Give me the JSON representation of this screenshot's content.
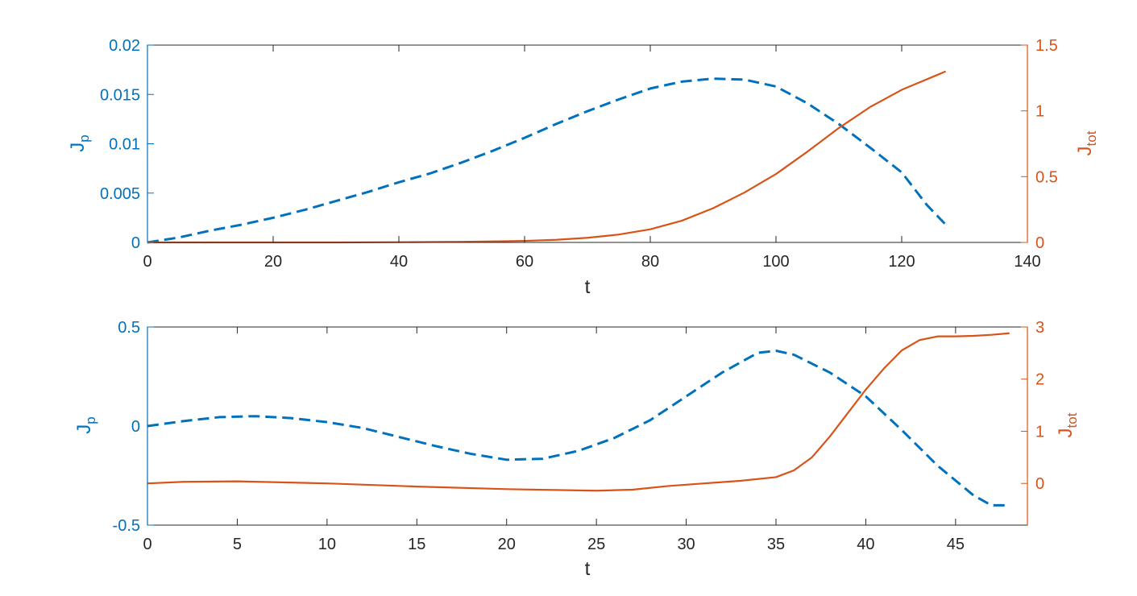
{
  "colors": {
    "left_axis": "#0072BD",
    "right_axis": "#D95319",
    "axes": "#262626",
    "background": "#ffffff"
  },
  "chart_data": [
    {
      "type": "line",
      "title": "",
      "xlabel": "t",
      "ylabel_left": {
        "main": "J",
        "sub": "p"
      },
      "ylabel_right": {
        "main": "J",
        "sub": "tot"
      },
      "xlim": [
        0,
        140
      ],
      "ylim_left": [
        0,
        0.02
      ],
      "ylim_right": [
        0,
        1.5
      ],
      "x_ticks": [
        "0",
        "20",
        "40",
        "60",
        "80",
        "100",
        "120",
        "140"
      ],
      "y_ticks_left": [
        "0",
        "0.005",
        "0.01",
        "0.015",
        "0.02"
      ],
      "y_ticks_right": [
        "0",
        "0.5",
        "1",
        "1.5"
      ],
      "grid": false,
      "series": [
        {
          "axis": "left",
          "style": "dashed",
          "color": "#0072BD",
          "x": [
            0,
            5,
            10,
            15,
            20,
            25,
            30,
            35,
            40,
            45,
            50,
            55,
            60,
            65,
            70,
            75,
            80,
            85,
            90,
            95,
            100,
            105,
            110,
            115,
            120,
            124,
            127
          ],
          "y": [
            0.0,
            0.0005,
            0.0012,
            0.0018,
            0.0025,
            0.0033,
            0.0042,
            0.0051,
            0.0061,
            0.007,
            0.0081,
            0.0093,
            0.0106,
            0.012,
            0.0133,
            0.0145,
            0.0156,
            0.0163,
            0.0166,
            0.0165,
            0.0158,
            0.0141,
            0.012,
            0.0096,
            0.0071,
            0.0038,
            0.0018
          ]
        },
        {
          "axis": "right",
          "style": "solid",
          "color": "#D95319",
          "x": [
            0,
            10,
            20,
            30,
            40,
            50,
            55,
            60,
            65,
            70,
            75,
            80,
            85,
            90,
            95,
            100,
            105,
            110,
            115,
            120,
            125,
            127
          ],
          "y": [
            0,
            0,
            0,
            0,
            0.002,
            0.005,
            0.008,
            0.012,
            0.02,
            0.035,
            0.06,
            0.1,
            0.165,
            0.26,
            0.38,
            0.52,
            0.69,
            0.87,
            1.03,
            1.16,
            1.26,
            1.3
          ]
        }
      ]
    },
    {
      "type": "line",
      "title": "",
      "xlabel": "t",
      "ylabel_left": {
        "main": "J",
        "sub": "p"
      },
      "ylabel_right": {
        "main": "J",
        "sub": "tot"
      },
      "xlim": [
        0,
        49
      ],
      "ylim_left": [
        -0.5,
        0.5
      ],
      "ylim_right": [
        -0.8,
        3
      ],
      "x_ticks": [
        "0",
        "5",
        "10",
        "15",
        "20",
        "25",
        "30",
        "35",
        "40",
        "45"
      ],
      "y_ticks_left": [
        "-0.5",
        "0",
        "0.5"
      ],
      "y_ticks_right": [
        "0",
        "1",
        "2",
        "3"
      ],
      "grid": false,
      "series": [
        {
          "axis": "left",
          "style": "dashed",
          "color": "#0072BD",
          "x": [
            0,
            2,
            4,
            6,
            8,
            10,
            12,
            14,
            16,
            18,
            20,
            22,
            24,
            26,
            28,
            30,
            32,
            34,
            35,
            36,
            38,
            40,
            42,
            44,
            46,
            47,
            48
          ],
          "y": [
            0,
            0.025,
            0.045,
            0.05,
            0.04,
            0.02,
            -0.01,
            -0.055,
            -0.1,
            -0.14,
            -0.17,
            -0.165,
            -0.125,
            -0.06,
            0.03,
            0.15,
            0.27,
            0.37,
            0.38,
            0.36,
            0.27,
            0.15,
            -0.02,
            -0.2,
            -0.35,
            -0.4,
            -0.4
          ]
        },
        {
          "axis": "right",
          "style": "solid",
          "color": "#D95319",
          "x": [
            0,
            2,
            5,
            10,
            15,
            20,
            25,
            27,
            29,
            31,
            33,
            35,
            36,
            37,
            38,
            39,
            40,
            41,
            42,
            43,
            44,
            45,
            46,
            47,
            48
          ],
          "y": [
            0.0,
            0.03,
            0.04,
            0.0,
            -0.06,
            -0.11,
            -0.14,
            -0.12,
            -0.05,
            0.0,
            0.05,
            0.12,
            0.25,
            0.5,
            0.9,
            1.35,
            1.8,
            2.2,
            2.55,
            2.75,
            2.82,
            2.82,
            2.83,
            2.85,
            2.88
          ]
        }
      ]
    }
  ]
}
